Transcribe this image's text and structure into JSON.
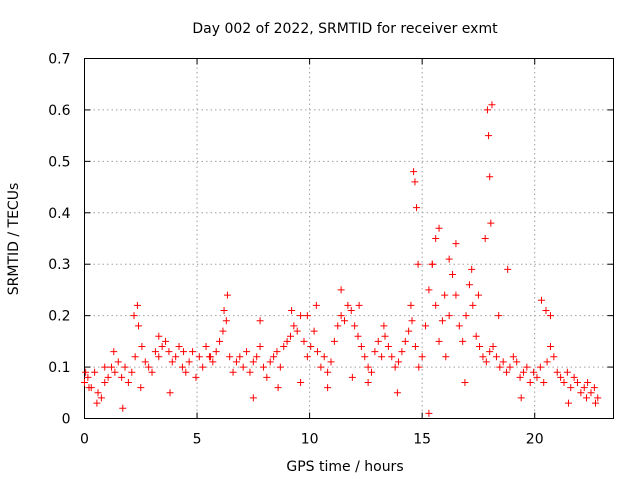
{
  "chart_data": {
    "type": "scatter",
    "title": "Day 002 of 2022, SRMTID for receiver exmt",
    "xlabel": "GPS time / hours",
    "ylabel": "SRMTID / TECUs",
    "xlim": [
      0,
      23.5
    ],
    "ylim": [
      0,
      0.7
    ],
    "x_ticks": [
      0,
      5,
      10,
      15,
      20
    ],
    "x_tick_labels": [
      "0",
      "5",
      "10",
      "15",
      "20"
    ],
    "y_ticks": [
      0,
      0.1,
      0.2,
      0.3,
      0.4,
      0.5,
      0.6,
      0.7
    ],
    "y_tick_labels": [
      "0",
      "0.1",
      "0.2",
      "0.3",
      "0.4",
      "0.5",
      "0.6",
      "0.7"
    ],
    "grid": true,
    "marker": "plus",
    "series_color": "#ff0000",
    "series": [
      {
        "name": "SRMTID",
        "x": [
          0.0,
          0.15,
          0.3,
          0.45,
          0.6,
          0.75,
          0.9,
          1.05,
          1.2,
          1.35,
          1.5,
          1.65,
          1.8,
          1.95,
          2.1,
          2.25,
          2.4,
          2.55,
          2.7,
          2.85,
          3.0,
          3.15,
          3.3,
          3.45,
          3.6,
          3.75,
          3.9,
          4.05,
          4.2,
          4.35,
          4.5,
          4.65,
          4.8,
          4.95,
          5.1,
          5.25,
          5.4,
          5.55,
          5.7,
          5.85,
          6.0,
          6.15,
          6.3,
          6.45,
          6.6,
          6.75,
          6.9,
          7.05,
          7.2,
          7.35,
          7.5,
          7.65,
          7.8,
          7.95,
          8.1,
          8.25,
          8.4,
          8.55,
          8.7,
          8.85,
          9.0,
          9.15,
          9.3,
          9.45,
          9.6,
          9.75,
          9.9,
          10.05,
          10.2,
          10.35,
          10.5,
          10.65,
          10.8,
          10.95,
          11.1,
          11.25,
          11.4,
          11.55,
          11.7,
          11.85,
          12.0,
          12.15,
          12.3,
          12.45,
          12.6,
          12.75,
          12.9,
          13.05,
          13.2,
          13.35,
          13.5,
          13.65,
          13.8,
          13.95,
          14.1,
          14.25,
          14.4,
          14.55,
          14.7,
          14.85,
          15.0,
          15.15,
          15.3,
          15.45,
          15.6,
          15.75,
          15.9,
          16.05,
          16.2,
          16.35,
          16.5,
          16.65,
          16.8,
          16.95,
          17.1,
          17.25,
          17.4,
          17.55,
          17.7,
          17.85,
          18.0,
          18.15,
          18.3,
          18.45,
          18.6,
          18.75,
          18.9,
          19.05,
          19.2,
          19.35,
          19.5,
          19.65,
          19.8,
          19.95,
          20.1,
          20.25,
          20.4,
          20.55,
          20.7,
          20.85,
          21.0,
          21.15,
          21.3,
          21.45,
          21.6,
          21.75,
          21.9,
          22.05,
          22.2,
          22.35,
          22.5,
          22.65,
          22.8,
          0.05,
          0.2,
          0.55,
          0.9,
          1.3,
          1.7,
          2.2,
          2.35,
          2.5,
          3.3,
          3.8,
          4.4,
          5.6,
          6.2,
          6.35,
          7.5,
          7.8,
          8.6,
          9.2,
          9.6,
          9.9,
          10.3,
          10.8,
          11.4,
          11.9,
          12.2,
          12.6,
          13.3,
          13.9,
          14.5,
          14.62,
          14.68,
          14.75,
          14.82,
          15.3,
          15.45,
          15.6,
          15.75,
          16.0,
          16.2,
          16.5,
          16.9,
          17.2,
          17.5,
          17.8,
          17.9,
          17.95,
          18.0,
          18.05,
          18.1,
          18.4,
          18.8,
          19.4,
          20.3,
          20.5,
          20.7,
          21.5,
          22.3,
          22.7
        ],
        "y": [
          0.07,
          0.08,
          0.06,
          0.09,
          0.05,
          0.04,
          0.07,
          0.08,
          0.1,
          0.09,
          0.11,
          0.08,
          0.1,
          0.07,
          0.09,
          0.12,
          0.18,
          0.14,
          0.11,
          0.1,
          0.09,
          0.13,
          0.12,
          0.14,
          0.15,
          0.13,
          0.11,
          0.12,
          0.14,
          0.1,
          0.09,
          0.11,
          0.13,
          0.08,
          0.12,
          0.1,
          0.14,
          0.12,
          0.11,
          0.13,
          0.15,
          0.17,
          0.19,
          0.12,
          0.09,
          0.11,
          0.12,
          0.1,
          0.13,
          0.09,
          0.11,
          0.12,
          0.14,
          0.1,
          0.08,
          0.11,
          0.12,
          0.13,
          0.1,
          0.14,
          0.15,
          0.16,
          0.18,
          0.17,
          0.2,
          0.15,
          0.12,
          0.14,
          0.17,
          0.13,
          0.1,
          0.12,
          0.09,
          0.11,
          0.15,
          0.18,
          0.2,
          0.19,
          0.22,
          0.21,
          0.18,
          0.16,
          0.14,
          0.12,
          0.1,
          0.09,
          0.13,
          0.15,
          0.12,
          0.16,
          0.14,
          0.12,
          0.1,
          0.11,
          0.13,
          0.15,
          0.17,
          0.19,
          0.14,
          0.1,
          0.12,
          0.18,
          0.25,
          0.3,
          0.22,
          0.15,
          0.19,
          0.12,
          0.2,
          0.28,
          0.24,
          0.18,
          0.15,
          0.2,
          0.26,
          0.22,
          0.16,
          0.14,
          0.12,
          0.11,
          0.13,
          0.14,
          0.12,
          0.1,
          0.11,
          0.09,
          0.1,
          0.12,
          0.11,
          0.08,
          0.09,
          0.1,
          0.07,
          0.09,
          0.08,
          0.1,
          0.07,
          0.11,
          0.2,
          0.12,
          0.09,
          0.08,
          0.07,
          0.09,
          0.06,
          0.08,
          0.07,
          0.05,
          0.06,
          0.07,
          0.05,
          0.06,
          0.04,
          0.09,
          0.06,
          0.03,
          0.1,
          0.13,
          0.02,
          0.2,
          0.22,
          0.06,
          0.16,
          0.05,
          0.13,
          0.12,
          0.21,
          0.24,
          0.04,
          0.19,
          0.06,
          0.21,
          0.07,
          0.2,
          0.22,
          0.06,
          0.25,
          0.08,
          0.22,
          0.07,
          0.18,
          0.05,
          0.22,
          0.48,
          0.46,
          0.41,
          0.3,
          0.01,
          0.3,
          0.35,
          0.37,
          0.24,
          0.31,
          0.34,
          0.07,
          0.29,
          0.24,
          0.35,
          0.6,
          0.55,
          0.47,
          0.38,
          0.61,
          0.2,
          0.29,
          0.04,
          0.23,
          0.21,
          0.14,
          0.03,
          0.04,
          0.03
        ]
      }
    ]
  }
}
